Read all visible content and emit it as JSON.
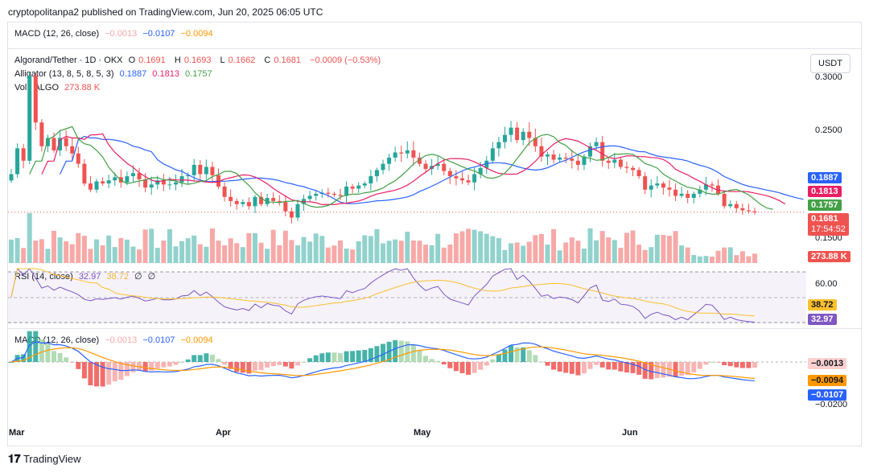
{
  "header": {
    "publisher": "cryptopolitanpa2 published on TradingView.com, Jun 20, 2025 06:05 UTC"
  },
  "top_macd_legend": {
    "name": "MACD (12, 26, close)",
    "hist": "−0.0013",
    "macd": "−0.0107",
    "signal": "−0.0094"
  },
  "main_legend": {
    "symbol": "Algorand/Tether · 1D · OKX",
    "o_label": "O",
    "o": "0.1691",
    "h_label": "H",
    "h": "0.1693",
    "l_label": "L",
    "l": "0.1662",
    "c_label": "C",
    "c": "0.1681",
    "change": "−0.0009 (−0.53%)",
    "alligator_name": "Alligator (13, 8, 5, 8, 5, 3)",
    "jaw": "0.1887",
    "teeth": "0.1813",
    "lips": "0.1757",
    "vol_name": "Vol · ALGO",
    "vol": "273.88 K"
  },
  "currency_button": "USDT",
  "price_axis": [
    "0.3000",
    "0.2500",
    "0.1500"
  ],
  "price_tags": {
    "jaw": "0.1887",
    "teeth": "0.1813",
    "lips": "0.1757",
    "last": "0.1681",
    "countdown": "17:54:52",
    "volume": "273.88 K"
  },
  "rsi": {
    "name": "RSI (14, close)",
    "value": "32.97",
    "ma": "38.72",
    "extra1": "∅",
    "extra2": "∅",
    "axis": [
      "60.00"
    ],
    "tag_ma": "38.72",
    "tag_value": "32.97"
  },
  "macd": {
    "name": "MACD (12, 26, close)",
    "hist": "−0.0013",
    "macd": "−0.0107",
    "signal": "−0.0094",
    "axis": [
      "−0.0200"
    ],
    "tag_hist": "−0.0013",
    "tag_signal": "−0.0094",
    "tag_macd": "−0.0107"
  },
  "time_axis": [
    "Mar",
    "Apr",
    "May",
    "Jun"
  ],
  "footer": {
    "brand": "TradingView"
  },
  "colors": {
    "up": "#26a69a",
    "down": "#ef5350",
    "jaw": "#2962ff",
    "teeth": "#e91e63",
    "lips": "#43a047",
    "rsi": "#7e57c2",
    "rsi_ma": "#fbc02d",
    "macd": "#2962ff",
    "signal": "#ff9800"
  },
  "chart_data": {
    "type": "candlestick",
    "symbol": "ALGO/USDT",
    "interval": "1D",
    "ylim": [
      0.14,
      0.305
    ],
    "closes": [
      0.205,
      0.23,
      0.218,
      0.3,
      0.255,
      0.232,
      0.24,
      0.228,
      0.24,
      0.232,
      0.225,
      0.215,
      0.196,
      0.19,
      0.198,
      0.196,
      0.199,
      0.202,
      0.197,
      0.203,
      0.206,
      0.2,
      0.192,
      0.195,
      0.199,
      0.195,
      0.195,
      0.197,
      0.203,
      0.204,
      0.214,
      0.205,
      0.212,
      0.204,
      0.193,
      0.183,
      0.179,
      0.176,
      0.178,
      0.174,
      0.183,
      0.176,
      0.182,
      0.179,
      0.178,
      0.169,
      0.163,
      0.176,
      0.181,
      0.184,
      0.186,
      0.187,
      0.186,
      0.185,
      0.184,
      0.193,
      0.191,
      0.194,
      0.196,
      0.203,
      0.209,
      0.215,
      0.221,
      0.226,
      0.225,
      0.228,
      0.221,
      0.215,
      0.21,
      0.213,
      0.215,
      0.208,
      0.203,
      0.201,
      0.199,
      0.197,
      0.205,
      0.211,
      0.218,
      0.23,
      0.236,
      0.243,
      0.25,
      0.238,
      0.246,
      0.24,
      0.232,
      0.222,
      0.224,
      0.219,
      0.221,
      0.22,
      0.218,
      0.214,
      0.222,
      0.232,
      0.236,
      0.218,
      0.216,
      0.219,
      0.212,
      0.211,
      0.209,
      0.203,
      0.19,
      0.194,
      0.196,
      0.192,
      0.19,
      0.184,
      0.186,
      0.182,
      0.186,
      0.19,
      0.195,
      0.194,
      0.186,
      0.174,
      0.176,
      0.172,
      0.17,
      0.169,
      0.168
    ]
  }
}
